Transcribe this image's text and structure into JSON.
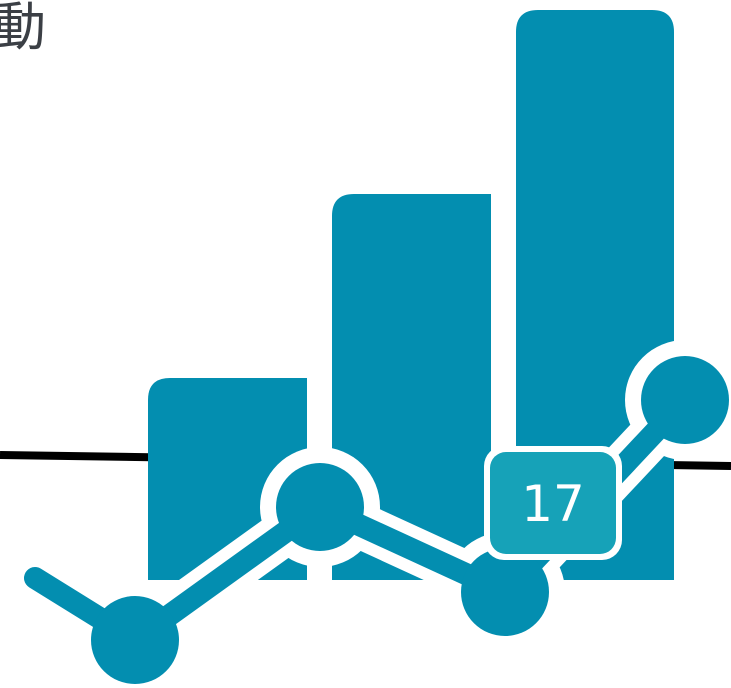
{
  "heading": {
    "text": "動"
  },
  "graphic": {
    "bar_color": "#038eb0",
    "line_color": "#038eb0",
    "badge_color": "#16a2b8",
    "baseline_color": "#000000",
    "background": "#ffffff",
    "badge_value": "17",
    "icon": "growth-chart-icon"
  }
}
